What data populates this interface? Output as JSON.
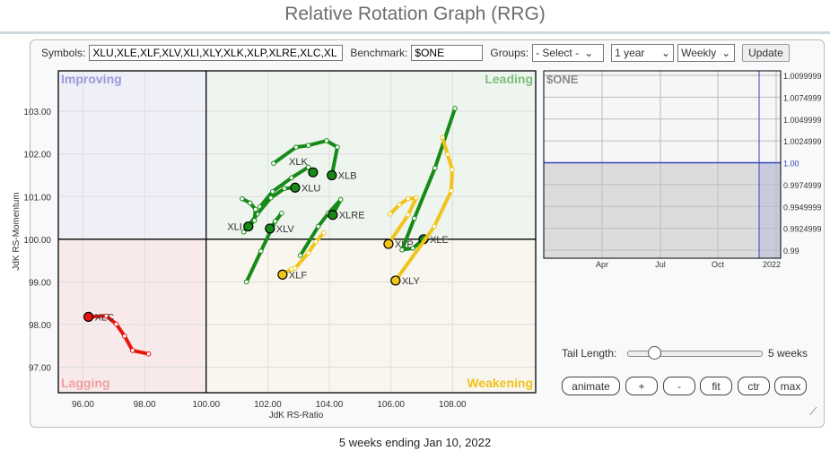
{
  "title": "Relative Rotation Graph (RRG)",
  "controls": {
    "symbols_label": "Symbols:",
    "symbols_value": "XLU,XLE,XLF,XLV,XLI,XLY,XLK,XLP,XLRE,XLC,XL",
    "benchmark_label": "Benchmark:",
    "benchmark_value": "$ONE",
    "groups_label": "Groups:",
    "groups_value": "- Select -",
    "period_value": "1 year",
    "frequency_value": "Weekly",
    "update_label": "Update"
  },
  "quadrants": {
    "improving": "Improving",
    "leading": "Leading",
    "lagging": "Lagging",
    "weakening": "Weakening",
    "colors": {
      "improving": "#efeff8",
      "leading": "#eef4ee",
      "lagging": "#f8eaea",
      "weakening": "#f8f6ef"
    },
    "label_colors": {
      "improving": "#9a9ad8",
      "leading": "#7cbf7c",
      "lagging": "#f0a0a0",
      "weakening": "#f0c419"
    }
  },
  "chart_data": {
    "type": "scatter",
    "xlabel": "JdK RS-Ratio",
    "ylabel": "JdK RS-Momentum",
    "xlim": [
      95.2,
      110.7
    ],
    "ylim": [
      96.4,
      103.95
    ],
    "xticks": [
      "96.00",
      "98.00",
      "100.00",
      "102.00",
      "104.00",
      "106.00",
      "108.00"
    ],
    "yticks": [
      "97.00",
      "98.00",
      "99.00",
      "100.00",
      "101.00",
      "102.00",
      "103.00"
    ],
    "grid": true,
    "tail_colors": {
      "leading": "#168a16",
      "weakening": "#f0c419",
      "lagging": "#e8140c"
    },
    "series": [
      {
        "name": "XLC",
        "color": "#e8140c",
        "points": [
          [
            98.13,
            97.31
          ],
          [
            97.61,
            97.39
          ],
          [
            97.35,
            97.73
          ],
          [
            97.08,
            98.01
          ],
          [
            96.76,
            98.2
          ],
          [
            96.18,
            98.18
          ]
        ]
      },
      {
        "name": "XLB",
        "color": "#168a16",
        "points": [
          [
            102.19,
            101.78
          ],
          [
            102.92,
            102.16
          ],
          [
            103.32,
            102.2
          ],
          [
            103.91,
            102.31
          ],
          [
            104.26,
            102.16
          ],
          [
            104.08,
            101.5
          ]
        ]
      },
      {
        "name": "XLK",
        "color": "#168a16",
        "points": [
          [
            101.75,
            100.76
          ],
          [
            102.16,
            101.12
          ],
          [
            102.77,
            101.44
          ],
          [
            103.32,
            101.69
          ],
          [
            103.47,
            101.57
          ]
        ]
      },
      {
        "name": "XLU",
        "color": "#168a16",
        "points": [
          [
            101.22,
            100.17
          ],
          [
            101.66,
            100.59
          ],
          [
            102.1,
            100.97
          ],
          [
            102.54,
            101.19
          ],
          [
            102.89,
            101.21
          ]
        ]
      },
      {
        "name": "XLI",
        "color": "#168a16",
        "points": [
          [
            101.17,
            100.95
          ],
          [
            101.43,
            100.85
          ],
          [
            101.6,
            100.7
          ],
          [
            101.57,
            100.44
          ],
          [
            101.37,
            100.3
          ]
        ]
      },
      {
        "name": "XLV",
        "color": "#168a16",
        "points": [
          [
            101.31,
            99.0
          ],
          [
            101.78,
            99.72
          ],
          [
            102.24,
            100.42
          ],
          [
            102.45,
            100.61
          ],
          [
            102.07,
            100.25
          ]
        ]
      },
      {
        "name": "XLRE",
        "color": "#168a16",
        "points": [
          [
            103.06,
            99.62
          ],
          [
            103.64,
            100.3
          ],
          [
            103.97,
            100.61
          ],
          [
            104.37,
            100.93
          ],
          [
            104.11,
            100.57
          ]
        ]
      },
      {
        "name": "XLF",
        "color": "#f0c419",
        "points": [
          [
            103.82,
            100.15
          ],
          [
            103.56,
            99.94
          ],
          [
            103.32,
            99.68
          ],
          [
            102.89,
            99.32
          ],
          [
            102.77,
            99.3
          ],
          [
            102.48,
            99.17
          ]
        ]
      },
      {
        "name": "XLP",
        "color": "#f0c419",
        "points": [
          [
            105.98,
            100.59
          ],
          [
            106.27,
            100.81
          ],
          [
            106.56,
            100.95
          ],
          [
            106.82,
            100.97
          ],
          [
            106.56,
            100.57
          ],
          [
            105.92,
            99.89
          ]
        ]
      },
      {
        "name": "XLE",
        "color": "#168a16",
        "points": [
          [
            108.08,
            103.07
          ],
          [
            107.43,
            101.67
          ],
          [
            106.76,
            100.49
          ],
          [
            106.36,
            99.75
          ],
          [
            106.71,
            99.79
          ],
          [
            107.06,
            100.0
          ]
        ]
      },
      {
        "name": "XLY",
        "color": "#f0c419",
        "points": [
          [
            107.67,
            102.39
          ],
          [
            107.84,
            101.99
          ],
          [
            107.99,
            101.63
          ],
          [
            107.96,
            101.14
          ],
          [
            107.41,
            100.3
          ],
          [
            106.15,
            99.03
          ]
        ]
      }
    ]
  },
  "benchmark_chart": {
    "label": "$ONE",
    "yticks": [
      "1.0099999",
      "1.0074999",
      "1.0049999",
      "1.0024999",
      "1.00",
      "0.9974999",
      "0.9949999",
      "0.9924999",
      "0.99"
    ],
    "xticks": [
      "Apr",
      "Jul",
      "Oct",
      "2022"
    ],
    "value": 1.0
  },
  "tail": {
    "label": "Tail Length:",
    "value_label": "5 weeks",
    "weeks": 5,
    "max_weeks": 26
  },
  "buttons": {
    "animate": "animate",
    "zoom_in": "+",
    "zoom_out": "-",
    "fit": "fit",
    "ctr": "ctr",
    "max": "max"
  },
  "footer": "5 weeks ending Jan 10, 2022"
}
